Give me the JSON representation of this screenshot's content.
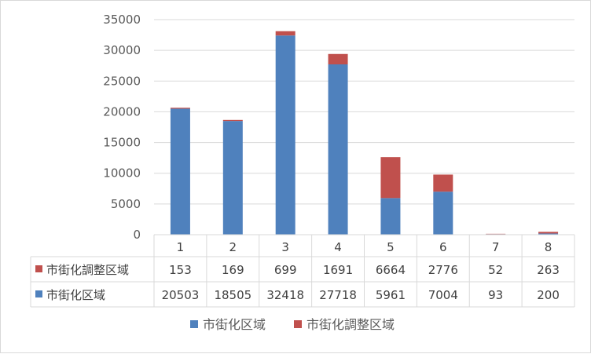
{
  "chart_data": {
    "type": "bar",
    "stacked": true,
    "categories": [
      "1",
      "2",
      "3",
      "4",
      "5",
      "6",
      "7",
      "8"
    ],
    "series": [
      {
        "name": "市街化区域",
        "color": "#4f81bd",
        "values": [
          20503,
          18505,
          32418,
          27718,
          5961,
          7004,
          93,
          200
        ]
      },
      {
        "name": "市街化調整区域",
        "color": "#c0504d",
        "values": [
          153,
          169,
          699,
          1691,
          6664,
          2776,
          52,
          263
        ]
      }
    ],
    "yticks": [
      "0",
      "5000",
      "10000",
      "15000",
      "20000",
      "25000",
      "30000",
      "35000"
    ],
    "ylim": [
      0,
      35000
    ],
    "grid": true,
    "legend_position": "bottom",
    "data_table": true
  }
}
